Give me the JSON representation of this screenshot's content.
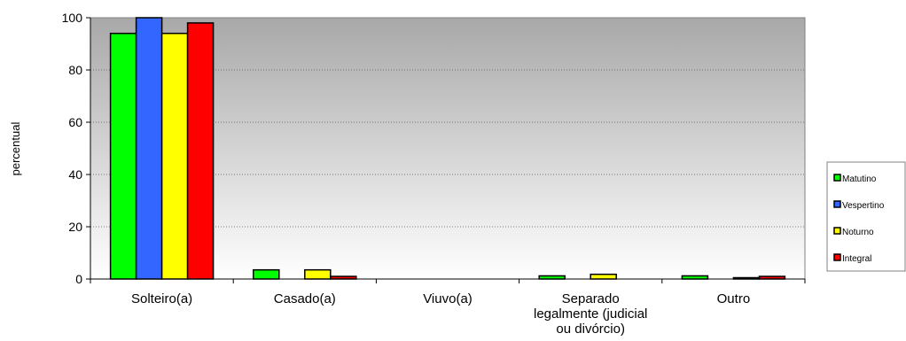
{
  "chart_data": {
    "type": "bar",
    "title": "",
    "ylabel": "percentual",
    "xlabel": "",
    "ylim": [
      0,
      100
    ],
    "yticks": [
      "0",
      "20",
      "40",
      "60",
      "80",
      "100"
    ],
    "grid": "horizontal dotted",
    "legend_position": "right",
    "plot_background": "gradient gray to white",
    "categories": [
      [
        "Solteiro(a)"
      ],
      [
        "Casado(a)"
      ],
      [
        "Viuvo(a)"
      ],
      [
        "Separado",
        "legalmente (judicial",
        "ou divórcio)"
      ],
      [
        "Outro"
      ]
    ],
    "series": [
      {
        "name": "Matutino",
        "color": "#00ff00",
        "values": [
          94,
          3.5,
          0,
          1.2,
          1.2
        ]
      },
      {
        "name": "Vespertino",
        "color": "#3366ff",
        "values": [
          100,
          0,
          0,
          0,
          0
        ]
      },
      {
        "name": "Noturno",
        "color": "#ffff00",
        "values": [
          94,
          3.5,
          0,
          1.8,
          0.5
        ]
      },
      {
        "name": "Integral",
        "color": "#ff0000",
        "values": [
          98,
          1,
          0,
          0,
          1
        ]
      }
    ]
  }
}
